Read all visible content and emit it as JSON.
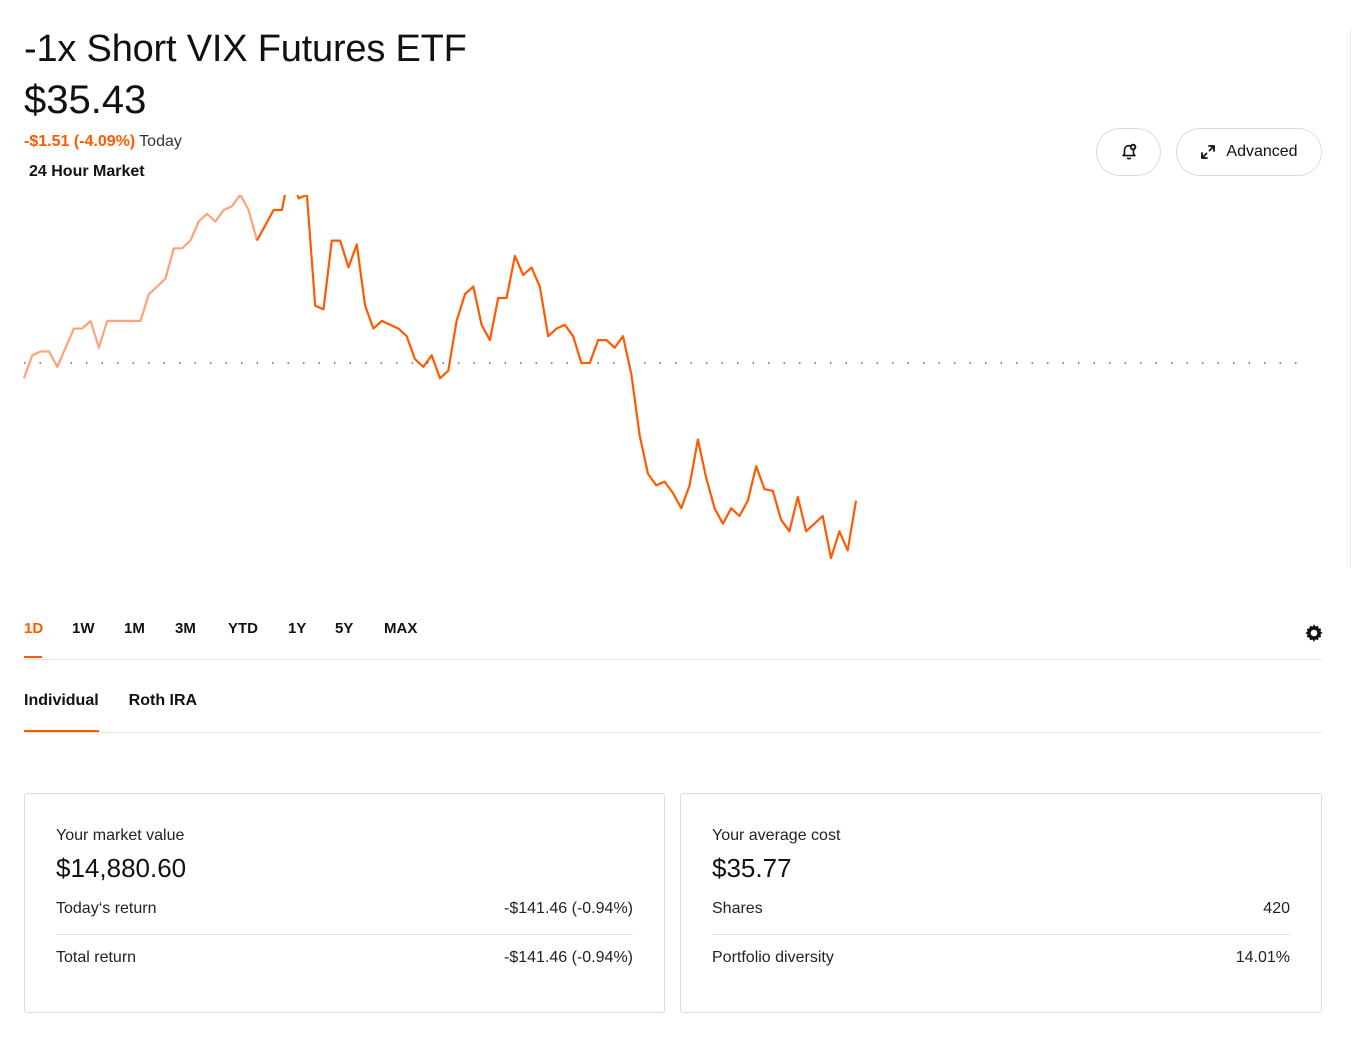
{
  "header": {
    "title": "-1x Short VIX Futures ETF",
    "price": "$35.43",
    "change": "-$1.51 (-4.09%)",
    "change_period": "Today",
    "market_label": "24 Hour Market"
  },
  "actions": {
    "alert_icon": "bell-plus-icon",
    "advanced_label": "Advanced",
    "advanced_icon": "expand-icon"
  },
  "colors": {
    "accent": "#ff5a00",
    "pre_market_line": "#ffa27a",
    "reference_line": "#666666"
  },
  "chart_data": {
    "type": "line",
    "reference_line": "previous close (dotted)",
    "pre_market_points": 28,
    "values": [
      37.3,
      37.6,
      37.65,
      37.65,
      37.45,
      37.7,
      37.95,
      37.95,
      38.05,
      37.7,
      38.05,
      38.05,
      38.05,
      38.05,
      38.05,
      38.4,
      38.5,
      38.6,
      39.0,
      39.0,
      39.1,
      39.35,
      39.45,
      39.35,
      39.5,
      39.55,
      39.7,
      39.5,
      39.1,
      39.3,
      39.5,
      39.5,
      40.05,
      39.65,
      39.7,
      38.25,
      38.2,
      39.1,
      39.1,
      38.75,
      39.05,
      38.25,
      37.95,
      38.05,
      38.0,
      37.95,
      37.85,
      37.55,
      37.45,
      37.6,
      37.3,
      37.4,
      38.05,
      38.4,
      38.5,
      38.0,
      37.8,
      38.35,
      38.35,
      38.9,
      38.65,
      38.75,
      38.5,
      37.85,
      37.95,
      38.0,
      37.85,
      37.5,
      37.5,
      37.8,
      37.8,
      37.7,
      37.85,
      37.35,
      36.55,
      36.05,
      35.9,
      35.95,
      35.8,
      35.6,
      35.9,
      36.5,
      36.0,
      35.6,
      35.4,
      35.6,
      35.5,
      35.7,
      36.15,
      35.85,
      35.83,
      35.45,
      35.3,
      35.75,
      35.3,
      35.4,
      35.5,
      34.95,
      35.3,
      35.05,
      35.7
    ]
  },
  "ranges": [
    "1D",
    "1W",
    "1M",
    "3M",
    "YTD",
    "1Y",
    "5Y",
    "MAX"
  ],
  "active_range": "1D",
  "account_tabs": [
    "Individual",
    "Roth IRA"
  ],
  "active_account": "Individual",
  "market_value_card": {
    "label": "Your market value",
    "value": "$14,880.60",
    "rows": [
      {
        "label": "Today‘s return",
        "value": "-$141.46 (-0.94%)"
      },
      {
        "label": "Total return",
        "value": "-$141.46 (-0.94%)"
      }
    ]
  },
  "average_cost_card": {
    "label": "Your average cost",
    "value": "$35.77",
    "rows": [
      {
        "label": "Shares",
        "value": "420"
      },
      {
        "label": "Portfolio diversity",
        "value": "14.01%"
      }
    ]
  }
}
